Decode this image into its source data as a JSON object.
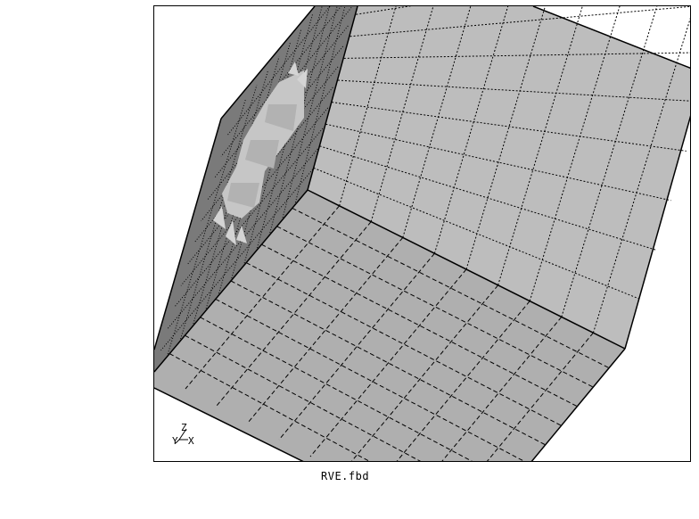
{
  "footer": {
    "filename": "RVE.fbd"
  },
  "triad": {
    "axes": [
      "Z",
      "Y",
      "X"
    ]
  },
  "colors": {
    "top_face": "#bdbdbd",
    "front_face": "#afafaf",
    "side_face": "#7a7a7a",
    "hole_light": "#c8c8c8",
    "hole_mid": "#b4b4b4",
    "edge": "#000000",
    "background": "#ffffff"
  }
}
